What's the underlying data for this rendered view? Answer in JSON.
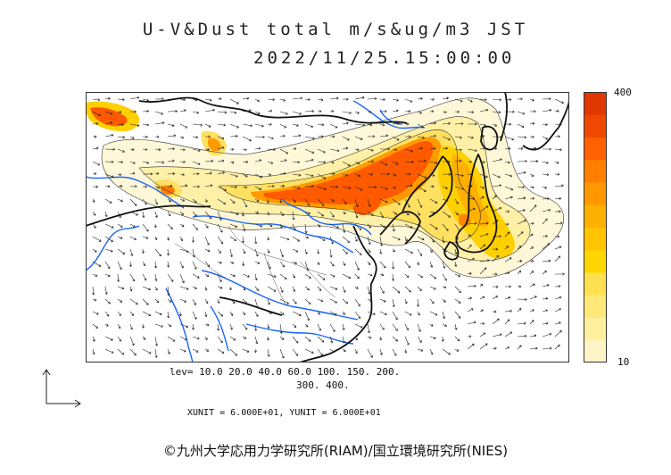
{
  "header": {
    "title": "U-V&Dust total m/s&ug/m3 JST",
    "datetime": "2022/11/25.15:00:00"
  },
  "colorbar": {
    "max_label": "400",
    "min_label": "10",
    "colors": [
      "#fff4c8",
      "#fff0a0",
      "#ffe87a",
      "#ffe050",
      "#ffd700",
      "#ffc400",
      "#ffb000",
      "#ff9800",
      "#ff7f00",
      "#ff6000",
      "#f04800",
      "#e03800"
    ]
  },
  "levels": {
    "line1": "lev= 10.0 20.0 40.0 60.0 100. 150. 200.",
    "line2": "300. 400."
  },
  "units": {
    "text": "XUNIT = 6.000E+01, YUNIT = 6.000E+01"
  },
  "footer": {
    "copyright": "©九州大学応用力学研究所(RIAM)/国立環境研究所(NIES)"
  },
  "map_style": {
    "coast_color": "#111111",
    "river_color": "#1a66ff",
    "vector_color": "#222222",
    "background": "#ffffff"
  }
}
